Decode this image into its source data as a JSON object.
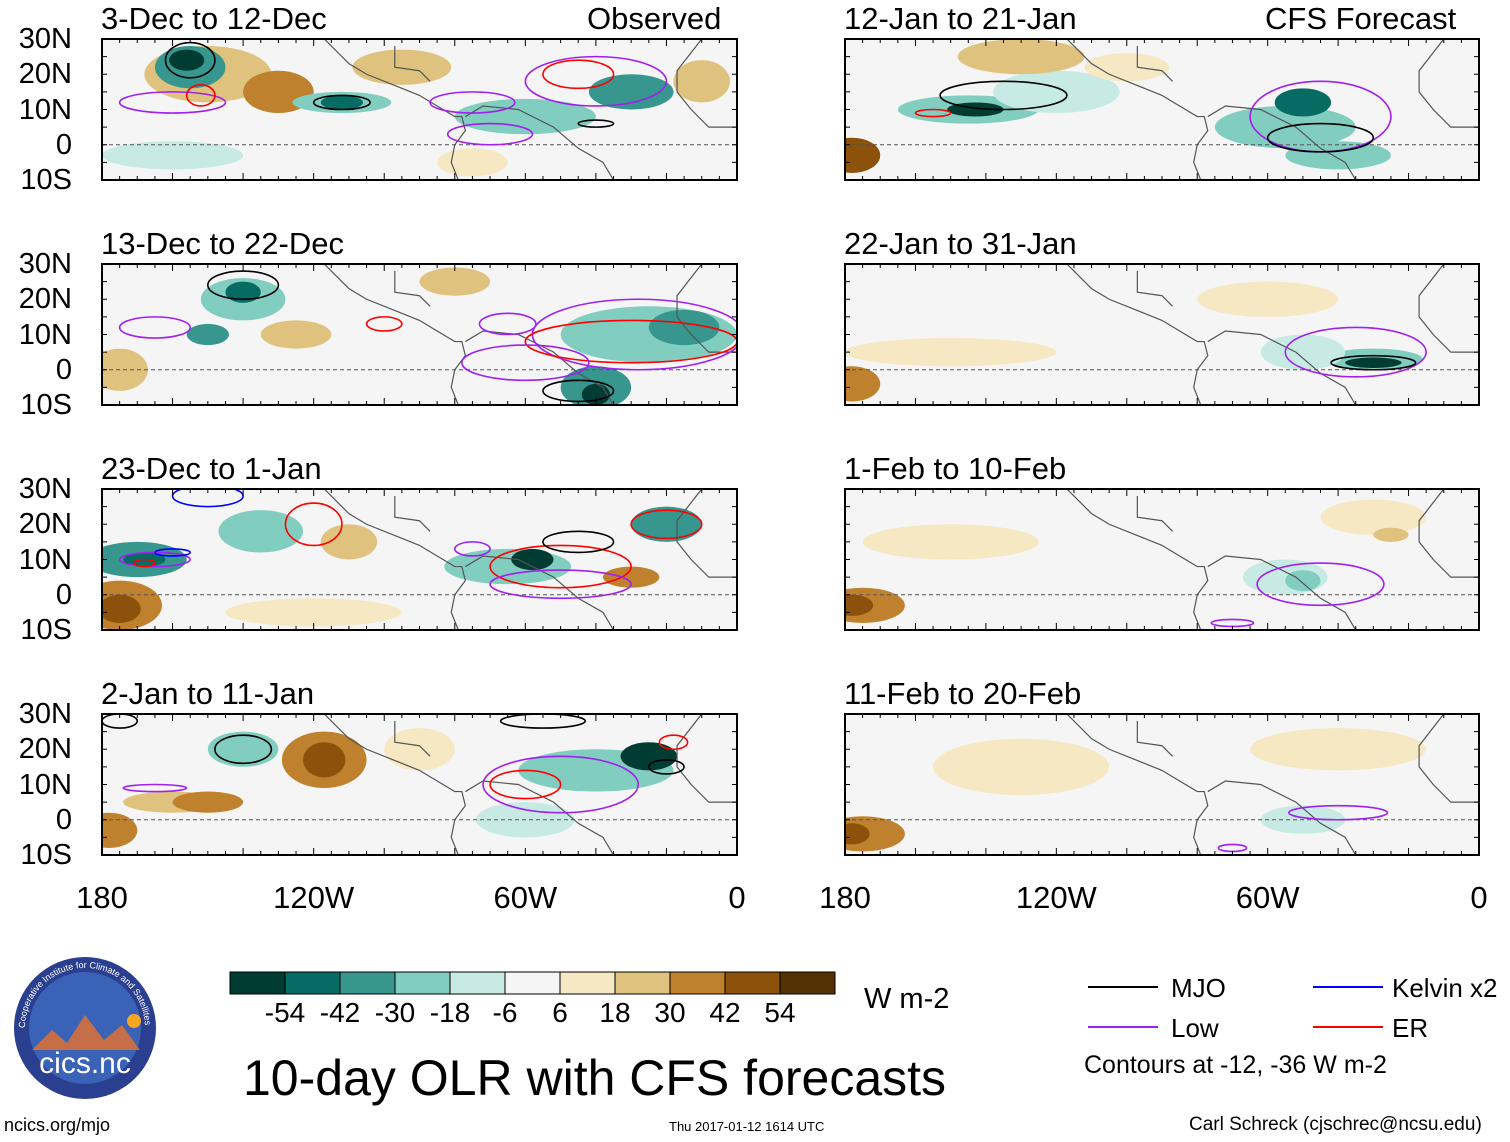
{
  "figure_title": "10-day OLR with CFS forecasts",
  "column_headers": {
    "left": "Observed",
    "right": "CFS Forecast"
  },
  "panels": [
    {
      "title": "3-Dec to 12-Dec",
      "column": "Observed"
    },
    {
      "title": "13-Dec to 22-Dec",
      "column": "Observed"
    },
    {
      "title": "23-Dec to 1-Jan",
      "column": "Observed"
    },
    {
      "title": "2-Jan to 11-Jan",
      "column": "Observed"
    },
    {
      "title": "12-Jan to 21-Jan",
      "column": "CFS Forecast"
    },
    {
      "title": "22-Jan to 31-Jan",
      "column": "CFS Forecast"
    },
    {
      "title": "1-Feb to 10-Feb",
      "column": "CFS Forecast"
    },
    {
      "title": "11-Feb to 20-Feb",
      "column": "CFS Forecast"
    }
  ],
  "lat_labels": [
    "30N",
    "20N",
    "10N",
    "0",
    "10S"
  ],
  "lon_labels": [
    "180",
    "120W",
    "60W",
    "0"
  ],
  "colorbar": {
    "units": "W m-2",
    "labels": [
      "-54",
      "-42",
      "-30",
      "-18",
      "-6",
      "6",
      "18",
      "30",
      "42",
      "54"
    ],
    "colors": [
      "#013c32",
      "#066b63",
      "#37968e",
      "#81cdc0",
      "#c7eae5",
      "#f5f5f5",
      "#f6e8c3",
      "#dfc27d",
      "#bf812d",
      "#8c510a",
      "#543005"
    ]
  },
  "legend": {
    "items": [
      {
        "label": "MJO",
        "color": "#000000"
      },
      {
        "label": "Kelvin x2",
        "color": "#0000ff"
      },
      {
        "label": "Low",
        "color": "#a020f0"
      },
      {
        "label": "ER",
        "color": "#ff0000"
      }
    ],
    "note": "Contours at -12, -36 W m-2"
  },
  "logo": {
    "text": "cics.nc",
    "ring_text": "Cooperative Institute for Climate and Satellites"
  },
  "footer": {
    "left": "ncics.org/mjo",
    "center": "Thu 2017-01-12 1614 UTC",
    "right": "Carl Schreck (cjschrec@ncsu.edu)"
  }
}
